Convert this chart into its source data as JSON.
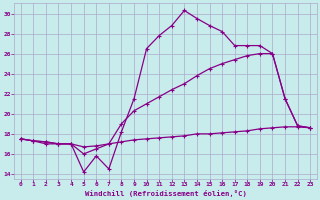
{
  "xlabel": "Windchill (Refroidissement éolien,°C)",
  "background_color": "#c8ecec",
  "grid_color": "#aaaacc",
  "line_color": "#880088",
  "xlim": [
    -0.5,
    23.5
  ],
  "ylim": [
    13.5,
    31.0
  ],
  "xticks": [
    0,
    1,
    2,
    3,
    4,
    5,
    6,
    7,
    8,
    9,
    10,
    11,
    12,
    13,
    14,
    15,
    16,
    17,
    18,
    19,
    20,
    21,
    22,
    23
  ],
  "yticks": [
    14,
    16,
    18,
    20,
    22,
    24,
    26,
    28,
    30
  ],
  "line1_x": [
    0,
    1,
    2,
    3,
    4,
    5,
    6,
    7,
    8,
    9,
    10,
    11,
    12,
    13,
    14,
    15,
    16,
    17,
    18,
    19,
    20,
    21,
    22,
    23
  ],
  "line1_y": [
    17.5,
    17.3,
    17.0,
    17.0,
    17.0,
    16.7,
    16.8,
    17.0,
    17.2,
    17.4,
    17.5,
    17.6,
    17.7,
    17.8,
    18.0,
    18.0,
    18.1,
    18.2,
    18.3,
    18.5,
    18.6,
    18.7,
    18.7,
    18.6
  ],
  "line2_x": [
    0,
    1,
    2,
    3,
    4,
    5,
    6,
    7,
    8,
    9,
    10,
    11,
    12,
    13,
    14,
    15,
    16,
    17,
    18,
    19,
    20,
    21,
    22,
    23
  ],
  "line2_y": [
    17.5,
    17.3,
    17.2,
    17.0,
    17.0,
    14.2,
    15.8,
    14.5,
    18.2,
    21.5,
    26.5,
    27.8,
    28.8,
    30.3,
    29.5,
    28.8,
    28.2,
    26.8,
    26.8,
    26.8,
    26.0,
    21.5,
    18.8,
    18.6
  ],
  "line3_x": [
    0,
    1,
    2,
    3,
    4,
    5,
    6,
    7,
    8,
    9,
    10,
    11,
    12,
    13,
    14,
    15,
    16,
    17,
    18,
    19,
    20,
    21,
    22,
    23
  ],
  "line3_y": [
    17.5,
    17.3,
    17.2,
    17.0,
    17.0,
    16.0,
    16.5,
    17.0,
    19.0,
    20.3,
    21.0,
    21.7,
    22.4,
    23.0,
    23.8,
    24.5,
    25.0,
    25.4,
    25.8,
    26.0,
    26.0,
    21.5,
    18.8,
    18.6
  ]
}
